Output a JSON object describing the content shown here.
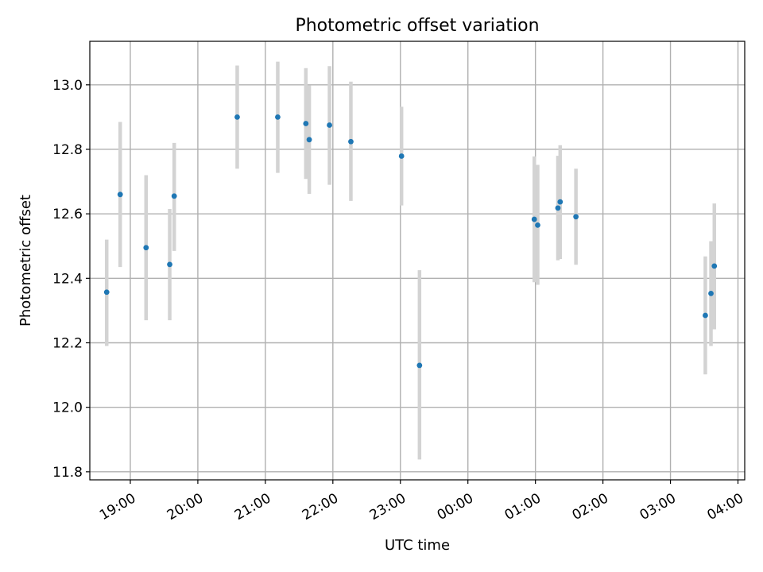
{
  "chart_data": {
    "type": "scatter",
    "title": "Photometric offset variation",
    "xlabel": "UTC time",
    "ylabel": "Photometric offset",
    "grid": true,
    "colors": {
      "point": "#1f77b4",
      "errorbar": "#d3d3d3"
    },
    "xlim": [
      "18:24",
      "04:06"
    ],
    "ylim": [
      11.775,
      13.135
    ],
    "x_ticks": [
      "19:00",
      "20:00",
      "21:00",
      "22:00",
      "23:00",
      "00:00",
      "01:00",
      "02:00",
      "03:00",
      "04:00"
    ],
    "y_ticks": [
      "11.8",
      "12.0",
      "12.2",
      "12.4",
      "12.6",
      "12.8",
      "13.0"
    ],
    "points": [
      {
        "x": "18:39",
        "y": 12.357,
        "ymin": 12.19,
        "ymax": 12.52
      },
      {
        "x": "18:51",
        "y": 12.66,
        "ymin": 12.435,
        "ymax": 12.885
      },
      {
        "x": "19:14",
        "y": 12.495,
        "ymin": 12.27,
        "ymax": 12.72
      },
      {
        "x": "19:35",
        "y": 12.443,
        "ymin": 12.27,
        "ymax": 12.615
      },
      {
        "x": "19:39",
        "y": 12.655,
        "ymin": 12.485,
        "ymax": 12.82
      },
      {
        "x": "20:35",
        "y": 12.9,
        "ymin": 12.74,
        "ymax": 13.06
      },
      {
        "x": "21:11",
        "y": 12.9,
        "ymin": 12.727,
        "ymax": 13.072
      },
      {
        "x": "21:36",
        "y": 12.88,
        "ymin": 12.708,
        "ymax": 13.052
      },
      {
        "x": "21:39",
        "y": 12.83,
        "ymin": 12.662,
        "ymax": 12.998
      },
      {
        "x": "21:57",
        "y": 12.875,
        "ymin": 12.69,
        "ymax": 13.058
      },
      {
        "x": "22:16",
        "y": 12.824,
        "ymin": 12.64,
        "ymax": 13.01
      },
      {
        "x": "23:01",
        "y": 12.779,
        "ymin": 12.626,
        "ymax": 12.932
      },
      {
        "x": "23:17",
        "y": 12.13,
        "ymin": 11.838,
        "ymax": 12.425
      },
      {
        "x": "00:59",
        "y": 12.583,
        "ymin": 12.388,
        "ymax": 12.778
      },
      {
        "x": "01:02",
        "y": 12.565,
        "ymin": 12.38,
        "ymax": 12.752
      },
      {
        "x": "01:20",
        "y": 12.618,
        "ymin": 12.456,
        "ymax": 12.78
      },
      {
        "x": "01:22",
        "y": 12.637,
        "ymin": 12.46,
        "ymax": 12.813
      },
      {
        "x": "01:36",
        "y": 12.591,
        "ymin": 12.442,
        "ymax": 12.74
      },
      {
        "x": "03:31",
        "y": 12.285,
        "ymin": 12.102,
        "ymax": 12.468
      },
      {
        "x": "03:36",
        "y": 12.353,
        "ymin": 12.19,
        "ymax": 12.515
      },
      {
        "x": "03:39",
        "y": 12.438,
        "ymin": 12.242,
        "ymax": 12.632
      }
    ]
  }
}
